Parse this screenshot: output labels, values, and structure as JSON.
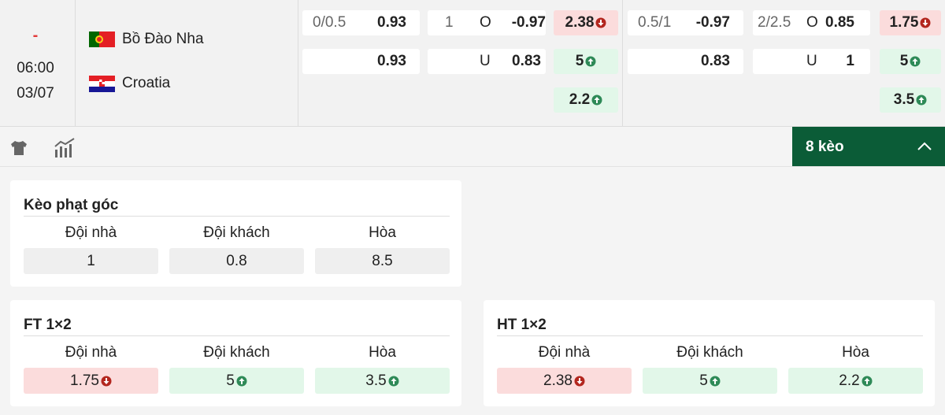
{
  "match": {
    "status": "-",
    "time": "06:00",
    "date": "03/07",
    "home": {
      "name": "Bồ Đào Nha"
    },
    "away": {
      "name": "Croatia"
    }
  },
  "odds": [
    {
      "handicap": {
        "line": "0/0.5",
        "home": "0.93",
        "away": "0.93"
      },
      "over_under": {
        "line": "1",
        "over_label": "O",
        "over": "-0.97",
        "under_label": "U",
        "under": "0.83"
      },
      "x12": [
        {
          "value": "2.38",
          "trend": "down"
        },
        {
          "value": "5",
          "trend": "up"
        },
        {
          "value": "2.2",
          "trend": "up"
        }
      ]
    },
    {
      "handicap": {
        "line": "0.5/1",
        "home": "-0.97",
        "away": "0.83"
      },
      "over_under": {
        "line": "2/2.5",
        "over_label": "O",
        "over": "0.85",
        "under_label": "U",
        "under": "1"
      },
      "x12": [
        {
          "value": "1.75",
          "trend": "down"
        },
        {
          "value": "5",
          "trend": "up"
        },
        {
          "value": "3.5",
          "trend": "up"
        }
      ]
    }
  ],
  "toolbar": {
    "more": "8 kèo"
  },
  "panels": [
    {
      "title": "Kèo phạt góc",
      "columns": [
        "Đội nhà",
        "Đội khách",
        "Hòa"
      ],
      "values": [
        {
          "value": "1"
        },
        {
          "value": "0.8"
        },
        {
          "value": "8.5"
        }
      ]
    },
    {
      "title": "FT 1×2",
      "columns": [
        "Đội nhà",
        "Đội khách",
        "Hòa"
      ],
      "values": [
        {
          "value": "1.75",
          "trend": "down"
        },
        {
          "value": "5",
          "trend": "up"
        },
        {
          "value": "3.5",
          "trend": "up"
        }
      ]
    },
    {
      "title": "HT 1×2",
      "columns": [
        "Đội nhà",
        "Đội khách",
        "Hòa"
      ],
      "values": [
        {
          "value": "2.38",
          "trend": "down"
        },
        {
          "value": "5",
          "trend": "up"
        },
        {
          "value": "2.2",
          "trend": "up"
        }
      ]
    }
  ]
}
